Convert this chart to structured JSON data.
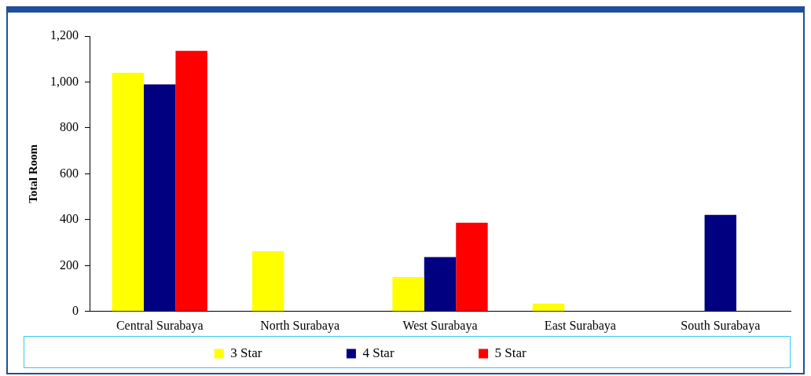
{
  "chart_data": {
    "type": "bar",
    "ylabel": "Total Room",
    "categories": [
      "Central Surabaya",
      "North Surabaya",
      "West Surabaya",
      "East Surabaya",
      "South Surabaya"
    ],
    "series": [
      {
        "name": "3 Star",
        "color": "#ffff00",
        "values": [
          1040,
          263,
          150,
          34,
          0
        ]
      },
      {
        "name": "4 Star",
        "color": "#000080",
        "values": [
          990,
          0,
          237,
          0,
          421
        ]
      },
      {
        "name": "5 Star",
        "color": "#ff0000",
        "values": [
          1136,
          0,
          387,
          0,
          0
        ]
      }
    ],
    "ylim": [
      0,
      1200
    ],
    "yticks": [
      0,
      200,
      400,
      600,
      800,
      {
        "value": 1000,
        "label": "1,000"
      },
      {
        "value": 1200,
        "label": "1,200"
      }
    ],
    "grid": false,
    "legend": "bottom"
  }
}
